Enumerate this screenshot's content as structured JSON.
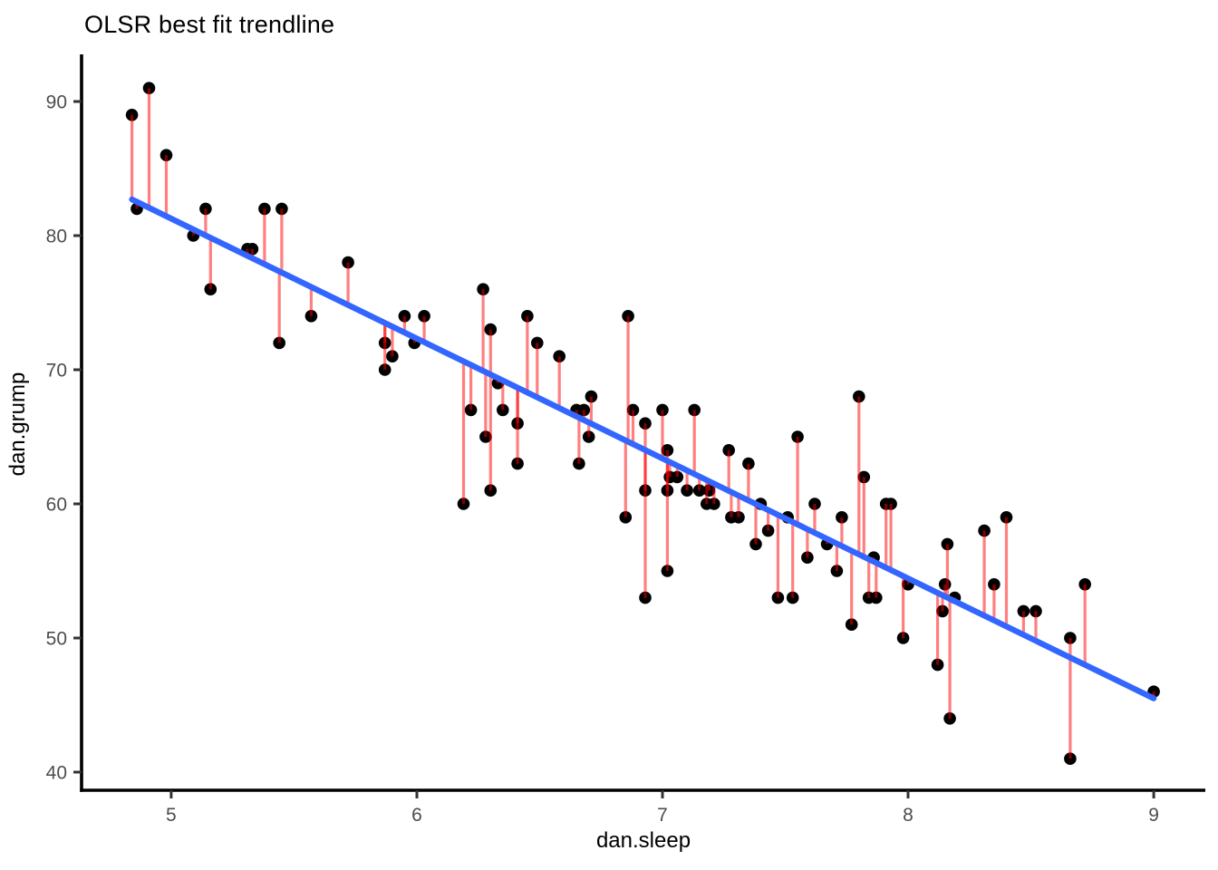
{
  "figure": {
    "background": "#ffffff"
  },
  "chart_data": {
    "type": "scatter",
    "title": "OLSR best fit trendline",
    "xlabel": "dan.sleep",
    "ylabel": "dan.grump",
    "x_ticks": [
      5,
      6,
      7,
      8,
      9
    ],
    "y_ticks": [
      40,
      50,
      60,
      70,
      80,
      90
    ],
    "xlim": [
      4.635,
      9.21
    ],
    "ylim": [
      38.65,
      93.51
    ],
    "grid": false,
    "legend": false,
    "point_color": "#000000",
    "residual_color": "rgba(255,0,0,0.5)",
    "trendline_color": "#3366FF",
    "axis_color": "#000000",
    "tick_label_color": "#4d4d4d",
    "trendline": {
      "slope": -8.94,
      "intercept": 125.96,
      "x_start": 4.84,
      "x_end": 9.0
    },
    "points": [
      [
        4.84,
        89
      ],
      [
        4.91,
        91
      ],
      [
        4.98,
        86
      ],
      [
        4.86,
        82
      ],
      [
        5.09,
        80
      ],
      [
        5.14,
        82
      ],
      [
        5.16,
        76
      ],
      [
        5.31,
        79
      ],
      [
        5.33,
        79
      ],
      [
        5.38,
        82
      ],
      [
        5.45,
        82
      ],
      [
        5.44,
        72
      ],
      [
        5.57,
        74
      ],
      [
        5.72,
        78
      ],
      [
        5.87,
        72
      ],
      [
        5.9,
        71
      ],
      [
        5.87,
        70
      ],
      [
        5.95,
        74
      ],
      [
        5.99,
        72
      ],
      [
        6.03,
        74
      ],
      [
        6.19,
        60
      ],
      [
        6.22,
        67
      ],
      [
        6.27,
        76
      ],
      [
        6.28,
        65
      ],
      [
        6.3,
        73
      ],
      [
        6.3,
        61
      ],
      [
        6.33,
        69
      ],
      [
        6.35,
        67
      ],
      [
        6.41,
        66
      ],
      [
        6.41,
        63
      ],
      [
        6.45,
        74
      ],
      [
        6.49,
        72
      ],
      [
        6.58,
        71
      ],
      [
        6.65,
        67
      ],
      [
        6.68,
        67
      ],
      [
        6.66,
        63
      ],
      [
        6.7,
        65
      ],
      [
        6.71,
        68
      ],
      [
        6.85,
        59
      ],
      [
        6.86,
        74
      ],
      [
        6.88,
        67
      ],
      [
        6.93,
        66
      ],
      [
        6.93,
        61
      ],
      [
        6.93,
        53
      ],
      [
        7.0,
        67
      ],
      [
        7.02,
        64
      ],
      [
        7.02,
        55
      ],
      [
        7.03,
        62
      ],
      [
        7.06,
        62
      ],
      [
        7.02,
        61
      ],
      [
        7.1,
        61
      ],
      [
        7.15,
        61
      ],
      [
        7.13,
        67
      ],
      [
        7.18,
        60
      ],
      [
        7.21,
        60
      ],
      [
        7.19,
        61
      ],
      [
        7.27,
        64
      ],
      [
        7.28,
        59
      ],
      [
        7.31,
        59
      ],
      [
        7.35,
        63
      ],
      [
        7.38,
        57
      ],
      [
        7.4,
        60
      ],
      [
        7.43,
        58
      ],
      [
        7.47,
        53
      ],
      [
        7.51,
        59
      ],
      [
        7.53,
        53
      ],
      [
        7.55,
        65
      ],
      [
        7.59,
        56
      ],
      [
        7.62,
        60
      ],
      [
        7.67,
        57
      ],
      [
        7.71,
        55
      ],
      [
        7.73,
        59
      ],
      [
        7.77,
        51
      ],
      [
        7.8,
        68
      ],
      [
        7.82,
        62
      ],
      [
        7.84,
        53
      ],
      [
        7.87,
        53
      ],
      [
        7.86,
        56
      ],
      [
        7.91,
        60
      ],
      [
        7.93,
        60
      ],
      [
        7.98,
        50
      ],
      [
        8.0,
        54
      ],
      [
        8.12,
        48
      ],
      [
        8.14,
        52
      ],
      [
        8.15,
        54
      ],
      [
        8.16,
        57
      ],
      [
        8.17,
        44
      ],
      [
        8.19,
        53
      ],
      [
        8.31,
        58
      ],
      [
        8.35,
        54
      ],
      [
        8.4,
        59
      ],
      [
        8.47,
        52
      ],
      [
        8.52,
        52
      ],
      [
        8.66,
        50
      ],
      [
        8.66,
        41
      ],
      [
        8.72,
        54
      ],
      [
        9.0,
        46
      ]
    ]
  }
}
